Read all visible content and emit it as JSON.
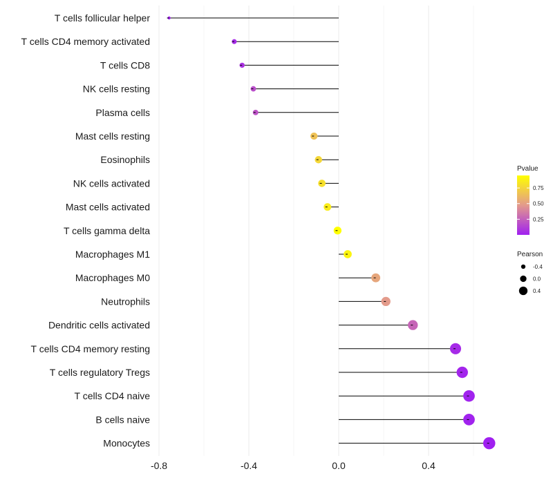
{
  "chart_data": {
    "type": "lollipop",
    "title": "",
    "xlabel": "",
    "ylabel": "",
    "xlim": [
      -0.8,
      0.7
    ],
    "x_ticks": [
      -0.8,
      -0.4,
      0.0,
      0.4
    ],
    "x_tick_labels": [
      "-0.8",
      "-0.4",
      "0.0",
      "0.4"
    ],
    "grid": true,
    "categories": [
      "T cells follicular helper",
      "T cells CD4 memory activated",
      "T cells CD8",
      "NK cells resting",
      "Plasma cells",
      "Mast cells resting",
      "Eosinophils",
      "NK cells activated",
      "Mast cells activated",
      "T cells gamma delta",
      "Macrophages M1",
      "Macrophages M0",
      "Neutrophils",
      "Dendritic cells activated",
      "T cells CD4 memory resting",
      "T cells regulatory  Tregs",
      "T cells CD4 naive",
      "B cells naive",
      "Monocytes"
    ],
    "pearson": [
      -0.755,
      -0.465,
      -0.43,
      -0.38,
      -0.37,
      -0.11,
      -0.09,
      -0.075,
      -0.05,
      -0.005,
      0.04,
      0.165,
      0.21,
      0.33,
      0.52,
      0.55,
      0.58,
      0.58,
      0.67
    ],
    "pvalue": [
      0.002,
      0.04,
      0.07,
      0.18,
      0.2,
      0.66,
      0.76,
      0.8,
      0.86,
      0.99,
      0.9,
      0.53,
      0.48,
      0.27,
      0.04,
      0.02,
      0.01,
      0.01,
      0.001
    ],
    "color_legend": {
      "title": "Pvalue",
      "ticks": [
        0.75,
        0.5,
        0.25
      ],
      "tick_labels": [
        "0.75",
        "0.50",
        "0.25"
      ],
      "range": [
        0.0,
        0.95
      ],
      "color_low": "#a020f0",
      "color_mid": "#e39a8c",
      "color_high": "#ffff00"
    },
    "size_legend": {
      "title": "Pearson",
      "values": [
        -0.4,
        0.0,
        0.4
      ],
      "labels": [
        "-0.4",
        "0.0",
        "0.4"
      ]
    }
  }
}
